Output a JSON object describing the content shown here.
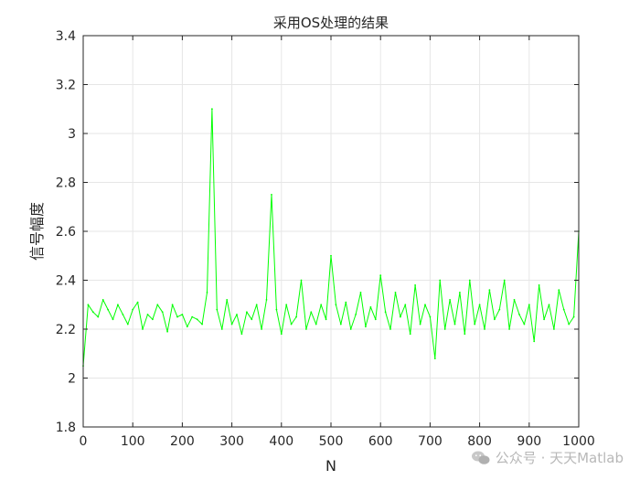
{
  "chart_data": {
    "type": "line",
    "title": "采用OS处理的结果",
    "xlabel": "N",
    "ylabel": "信号幅度",
    "xlim": [
      0,
      1000
    ],
    "ylim": [
      1.8,
      3.4
    ],
    "x_ticks": [
      0,
      100,
      200,
      300,
      400,
      500,
      600,
      700,
      800,
      900,
      1000
    ],
    "y_ticks": [
      1.8,
      2,
      2.2,
      2.4,
      2.6,
      2.8,
      3,
      3.2,
      3.4
    ],
    "grid": true,
    "series": [
      {
        "color": "#00ff00",
        "sample_step": 10,
        "x": [
          0,
          10,
          20,
          30,
          40,
          50,
          60,
          70,
          80,
          90,
          100,
          110,
          120,
          130,
          140,
          150,
          160,
          170,
          180,
          190,
          200,
          210,
          220,
          230,
          240,
          250,
          260,
          270,
          280,
          290,
          300,
          310,
          320,
          330,
          340,
          350,
          360,
          370,
          380,
          390,
          400,
          410,
          420,
          430,
          440,
          450,
          460,
          470,
          480,
          490,
          500,
          510,
          520,
          530,
          540,
          550,
          560,
          570,
          580,
          590,
          600,
          610,
          620,
          630,
          640,
          650,
          660,
          670,
          680,
          690,
          700,
          710,
          720,
          730,
          740,
          750,
          760,
          770,
          780,
          790,
          800,
          810,
          820,
          830,
          840,
          850,
          860,
          870,
          880,
          890,
          900,
          910,
          920,
          930,
          940,
          950,
          960,
          970,
          980,
          990,
          1000
        ],
        "values": [
          2.05,
          2.3,
          2.27,
          2.25,
          2.32,
          2.28,
          2.24,
          2.3,
          2.26,
          2.22,
          2.28,
          2.31,
          2.2,
          2.26,
          2.24,
          2.3,
          2.27,
          2.19,
          2.3,
          2.25,
          2.26,
          2.21,
          2.25,
          2.24,
          2.22,
          2.35,
          3.1,
          2.28,
          2.2,
          2.32,
          2.22,
          2.26,
          2.18,
          2.27,
          2.24,
          2.3,
          2.2,
          2.32,
          2.75,
          2.28,
          2.18,
          2.3,
          2.22,
          2.25,
          2.4,
          2.2,
          2.27,
          2.22,
          2.3,
          2.24,
          2.5,
          2.3,
          2.22,
          2.31,
          2.2,
          2.26,
          2.35,
          2.21,
          2.29,
          2.24,
          2.42,
          2.27,
          2.2,
          2.35,
          2.25,
          2.3,
          2.18,
          2.38,
          2.22,
          2.3,
          2.25,
          2.08,
          2.4,
          2.2,
          2.32,
          2.22,
          2.35,
          2.18,
          2.4,
          2.22,
          2.3,
          2.2,
          2.36,
          2.24,
          2.28,
          2.4,
          2.2,
          2.32,
          2.26,
          2.22,
          2.3,
          2.15,
          2.38,
          2.24,
          2.3,
          2.2,
          2.36,
          2.28,
          2.22,
          2.25,
          2.6
        ]
      }
    ]
  },
  "watermark": {
    "text": "公众号 · 天天Matlab",
    "icon": "wechat-icon"
  }
}
